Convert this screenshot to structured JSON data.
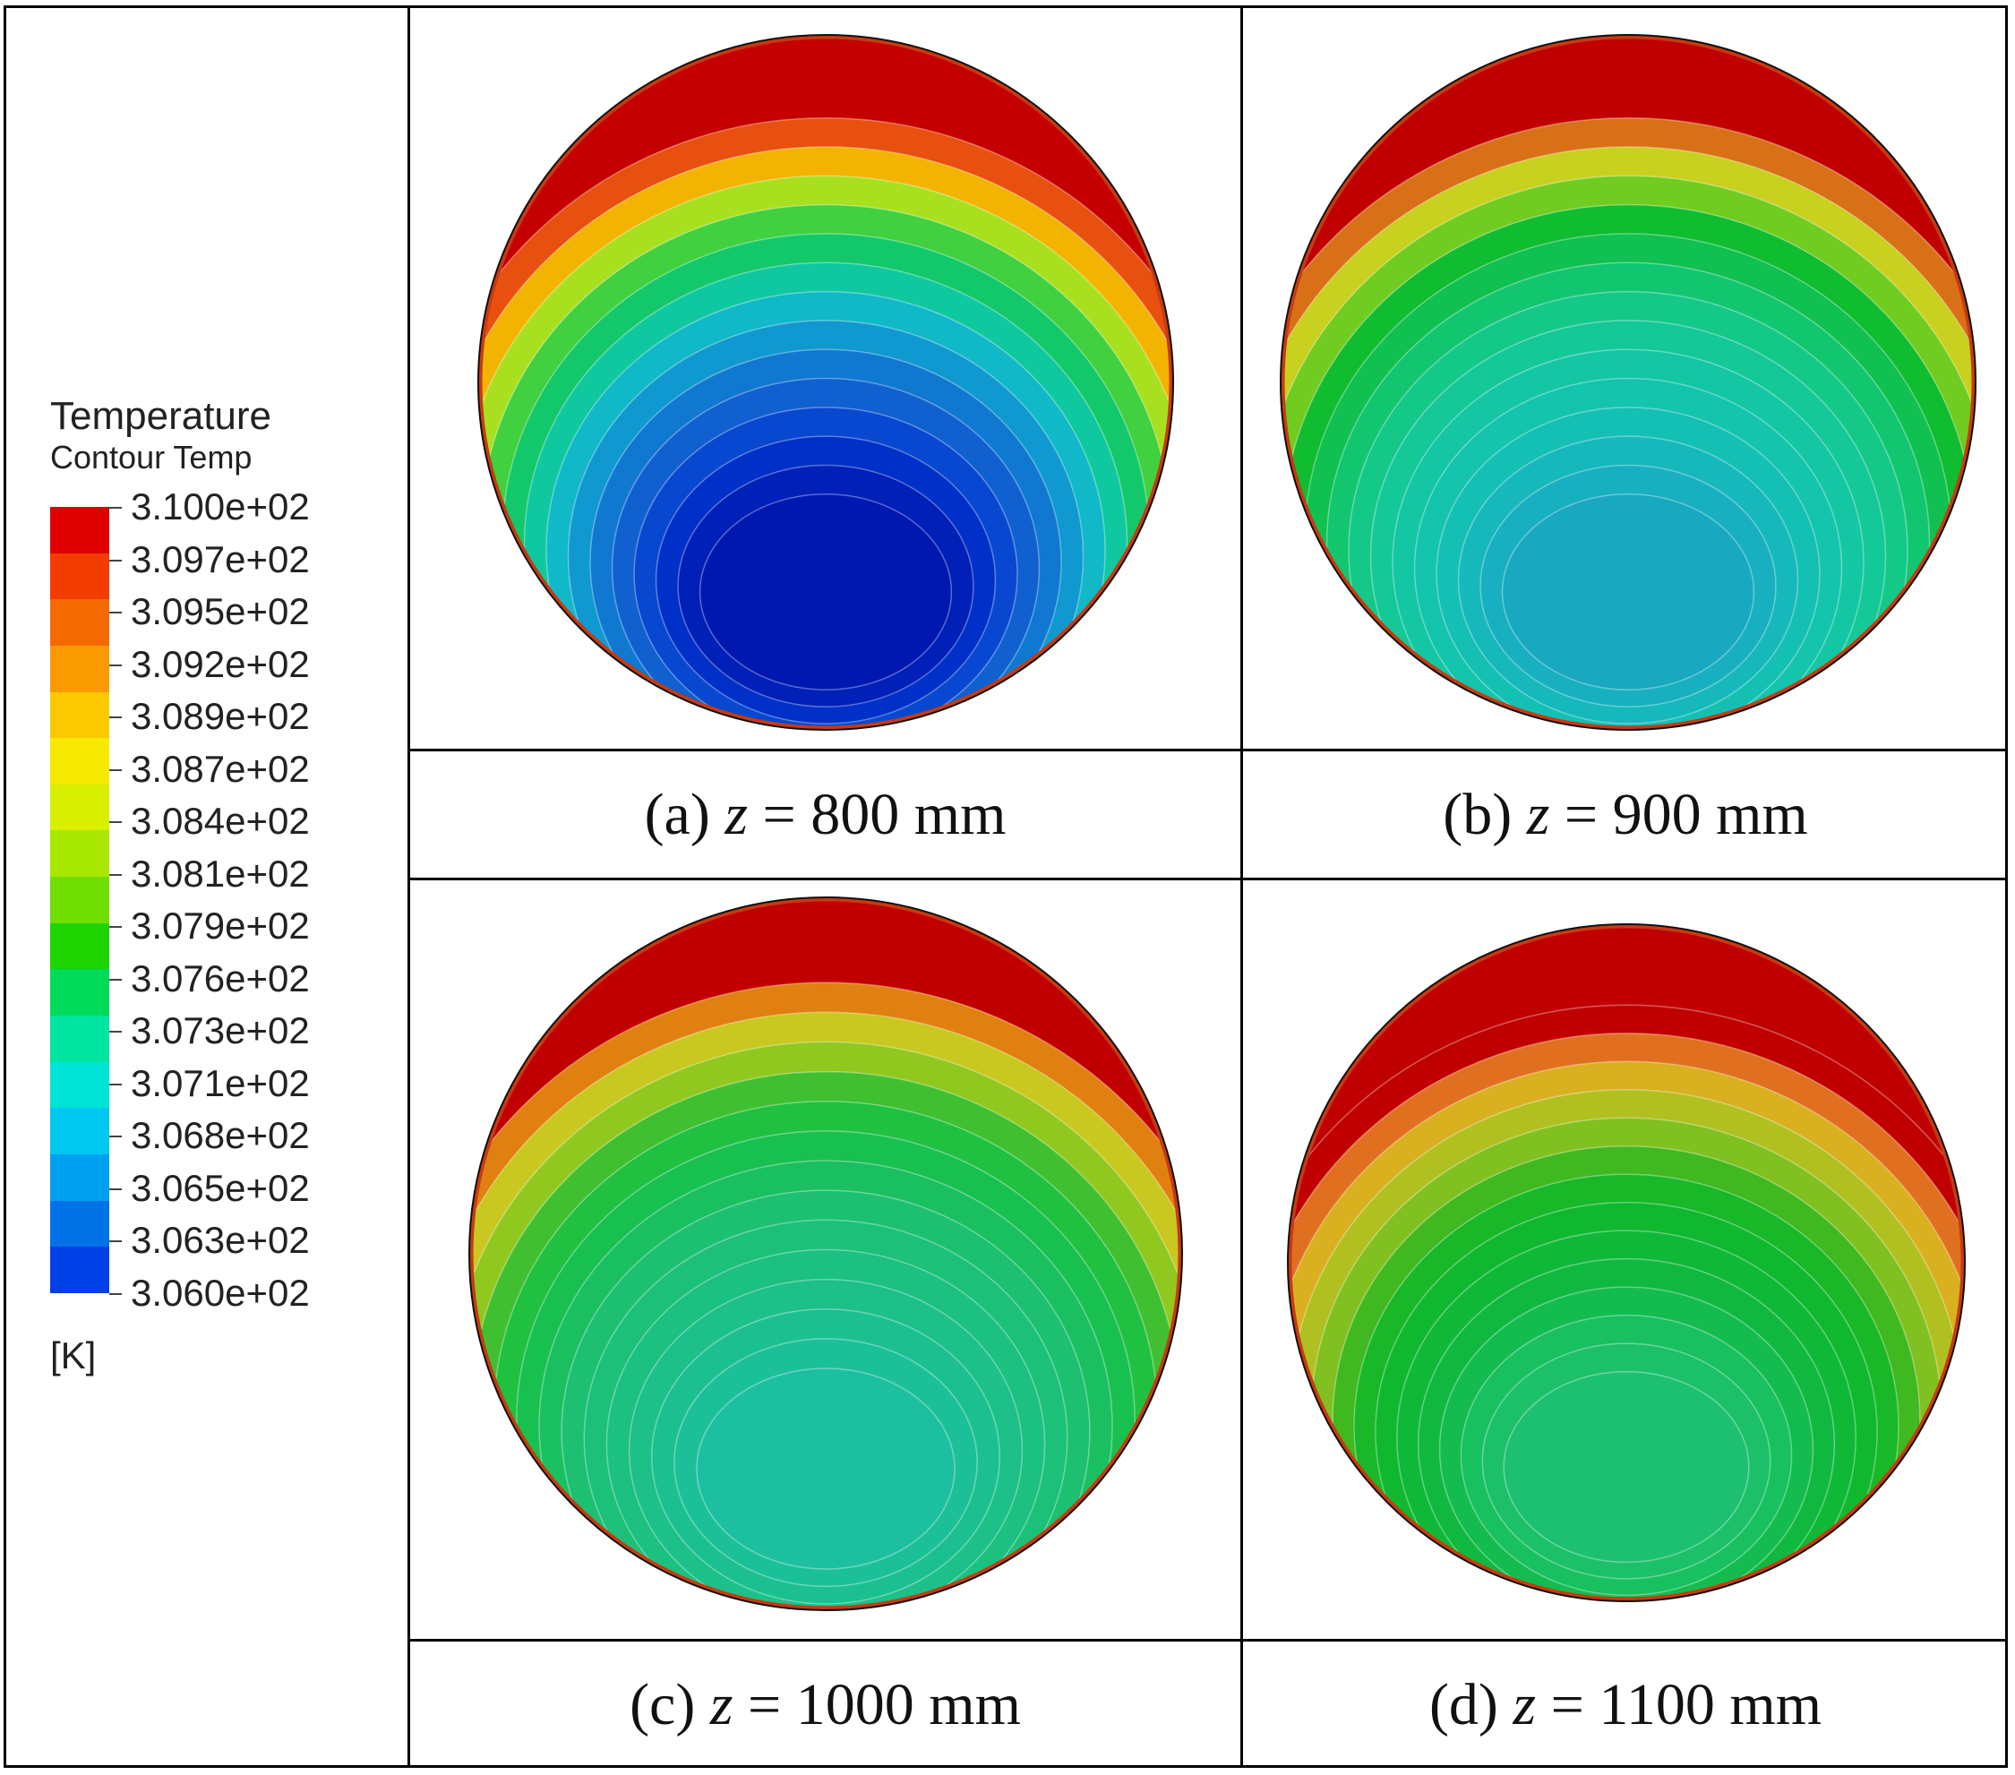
{
  "legend": {
    "title": "Temperature",
    "subtitle": "Contour Temp",
    "unit": "[K]",
    "levels": [
      "3.100e+02",
      "3.097e+02",
      "3.095e+02",
      "3.092e+02",
      "3.089e+02",
      "3.087e+02",
      "3.084e+02",
      "3.081e+02",
      "3.079e+02",
      "3.076e+02",
      "3.073e+02",
      "3.071e+02",
      "3.068e+02",
      "3.065e+02",
      "3.063e+02",
      "3.060e+02"
    ],
    "colors": [
      "#e00000",
      "#f23c00",
      "#f56a00",
      "#f89a00",
      "#fcc800",
      "#f5ea00",
      "#d8f000",
      "#a8e800",
      "#70de00",
      "#1ed400",
      "#00dc5a",
      "#00e6a0",
      "#00e4d8",
      "#00c8f0",
      "#00a0f0",
      "#0072e8",
      "#0040e6"
    ]
  },
  "panels": [
    {
      "id": "a",
      "label": "(a)",
      "var": "z",
      "eq": "= 800 mm",
      "palette": [
        "#c40000",
        "#e85010",
        "#f2b400",
        "#a8e020",
        "#40d040",
        "#12c86a",
        "#10c8a0",
        "#10b8c8",
        "#1098d0",
        "#1078d0",
        "#1060d0",
        "#0848d0",
        "#0030c8",
        "#0020b8",
        "#0018b0"
      ]
    },
    {
      "id": "b",
      "label": "(b)",
      "var": "z",
      "eq": "= 900 mm",
      "palette": [
        "#c00000",
        "#d87018",
        "#c8d020",
        "#70cc20",
        "#10bc30",
        "#10c050",
        "#12c670",
        "#14c888",
        "#14c898",
        "#14c6a4",
        "#14c4ac",
        "#14c0b4",
        "#16b8bc",
        "#18b0c0",
        "#18a8c0"
      ]
    },
    {
      "id": "c",
      "label": "(c)",
      "var": "z",
      "eq": "= 1000 mm",
      "palette": [
        "#c00000",
        "#e08010",
        "#c8c820",
        "#90c820",
        "#40c030",
        "#20c040",
        "#18c050",
        "#1ac060",
        "#1cc070",
        "#1cc078",
        "#1cc080",
        "#1cc088",
        "#1cc090",
        "#1cc098",
        "#1cc0a0"
      ]
    },
    {
      "id": "d",
      "label": "(d)",
      "var": "z",
      "eq": "= 1100 mm",
      "palette": [
        "#c00000",
        "#c00000",
        "#e07020",
        "#d8b020",
        "#b0c020",
        "#80c020",
        "#40b820",
        "#18b828",
        "#10b830",
        "#10b838",
        "#10b840",
        "#14bc50",
        "#18c060",
        "#1cc068",
        "#1cc070"
      ]
    }
  ]
}
